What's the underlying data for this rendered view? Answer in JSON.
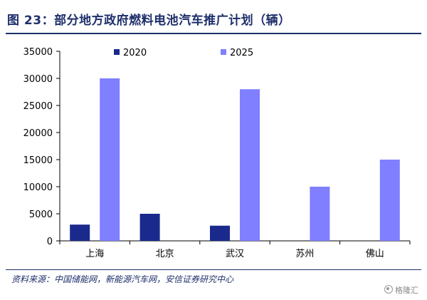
{
  "header": {
    "title": "图 23：部分地方政府燃料电池汽车推广计划（辆）"
  },
  "chart_data": {
    "type": "bar",
    "categories": [
      "上海",
      "北京",
      "武汉",
      "苏州",
      "佛山"
    ],
    "series": [
      {
        "name": "2020",
        "values": [
          3000,
          5000,
          2800,
          0,
          0
        ],
        "color": "#1a2a8c"
      },
      {
        "name": "2025",
        "values": [
          30000,
          0,
          28000,
          10000,
          15000
        ],
        "color": "#7f7fff"
      }
    ],
    "ylim": [
      0,
      35000
    ],
    "yticks": [
      "0",
      "5000",
      "10000",
      "15000",
      "20000",
      "25000",
      "30000",
      "35000"
    ],
    "legend": "top-center",
    "grid": false
  },
  "footer": {
    "source": "资料来源：中国储能网，新能源汽车网，安信证券研究中心",
    "watermark": "格隆汇"
  }
}
